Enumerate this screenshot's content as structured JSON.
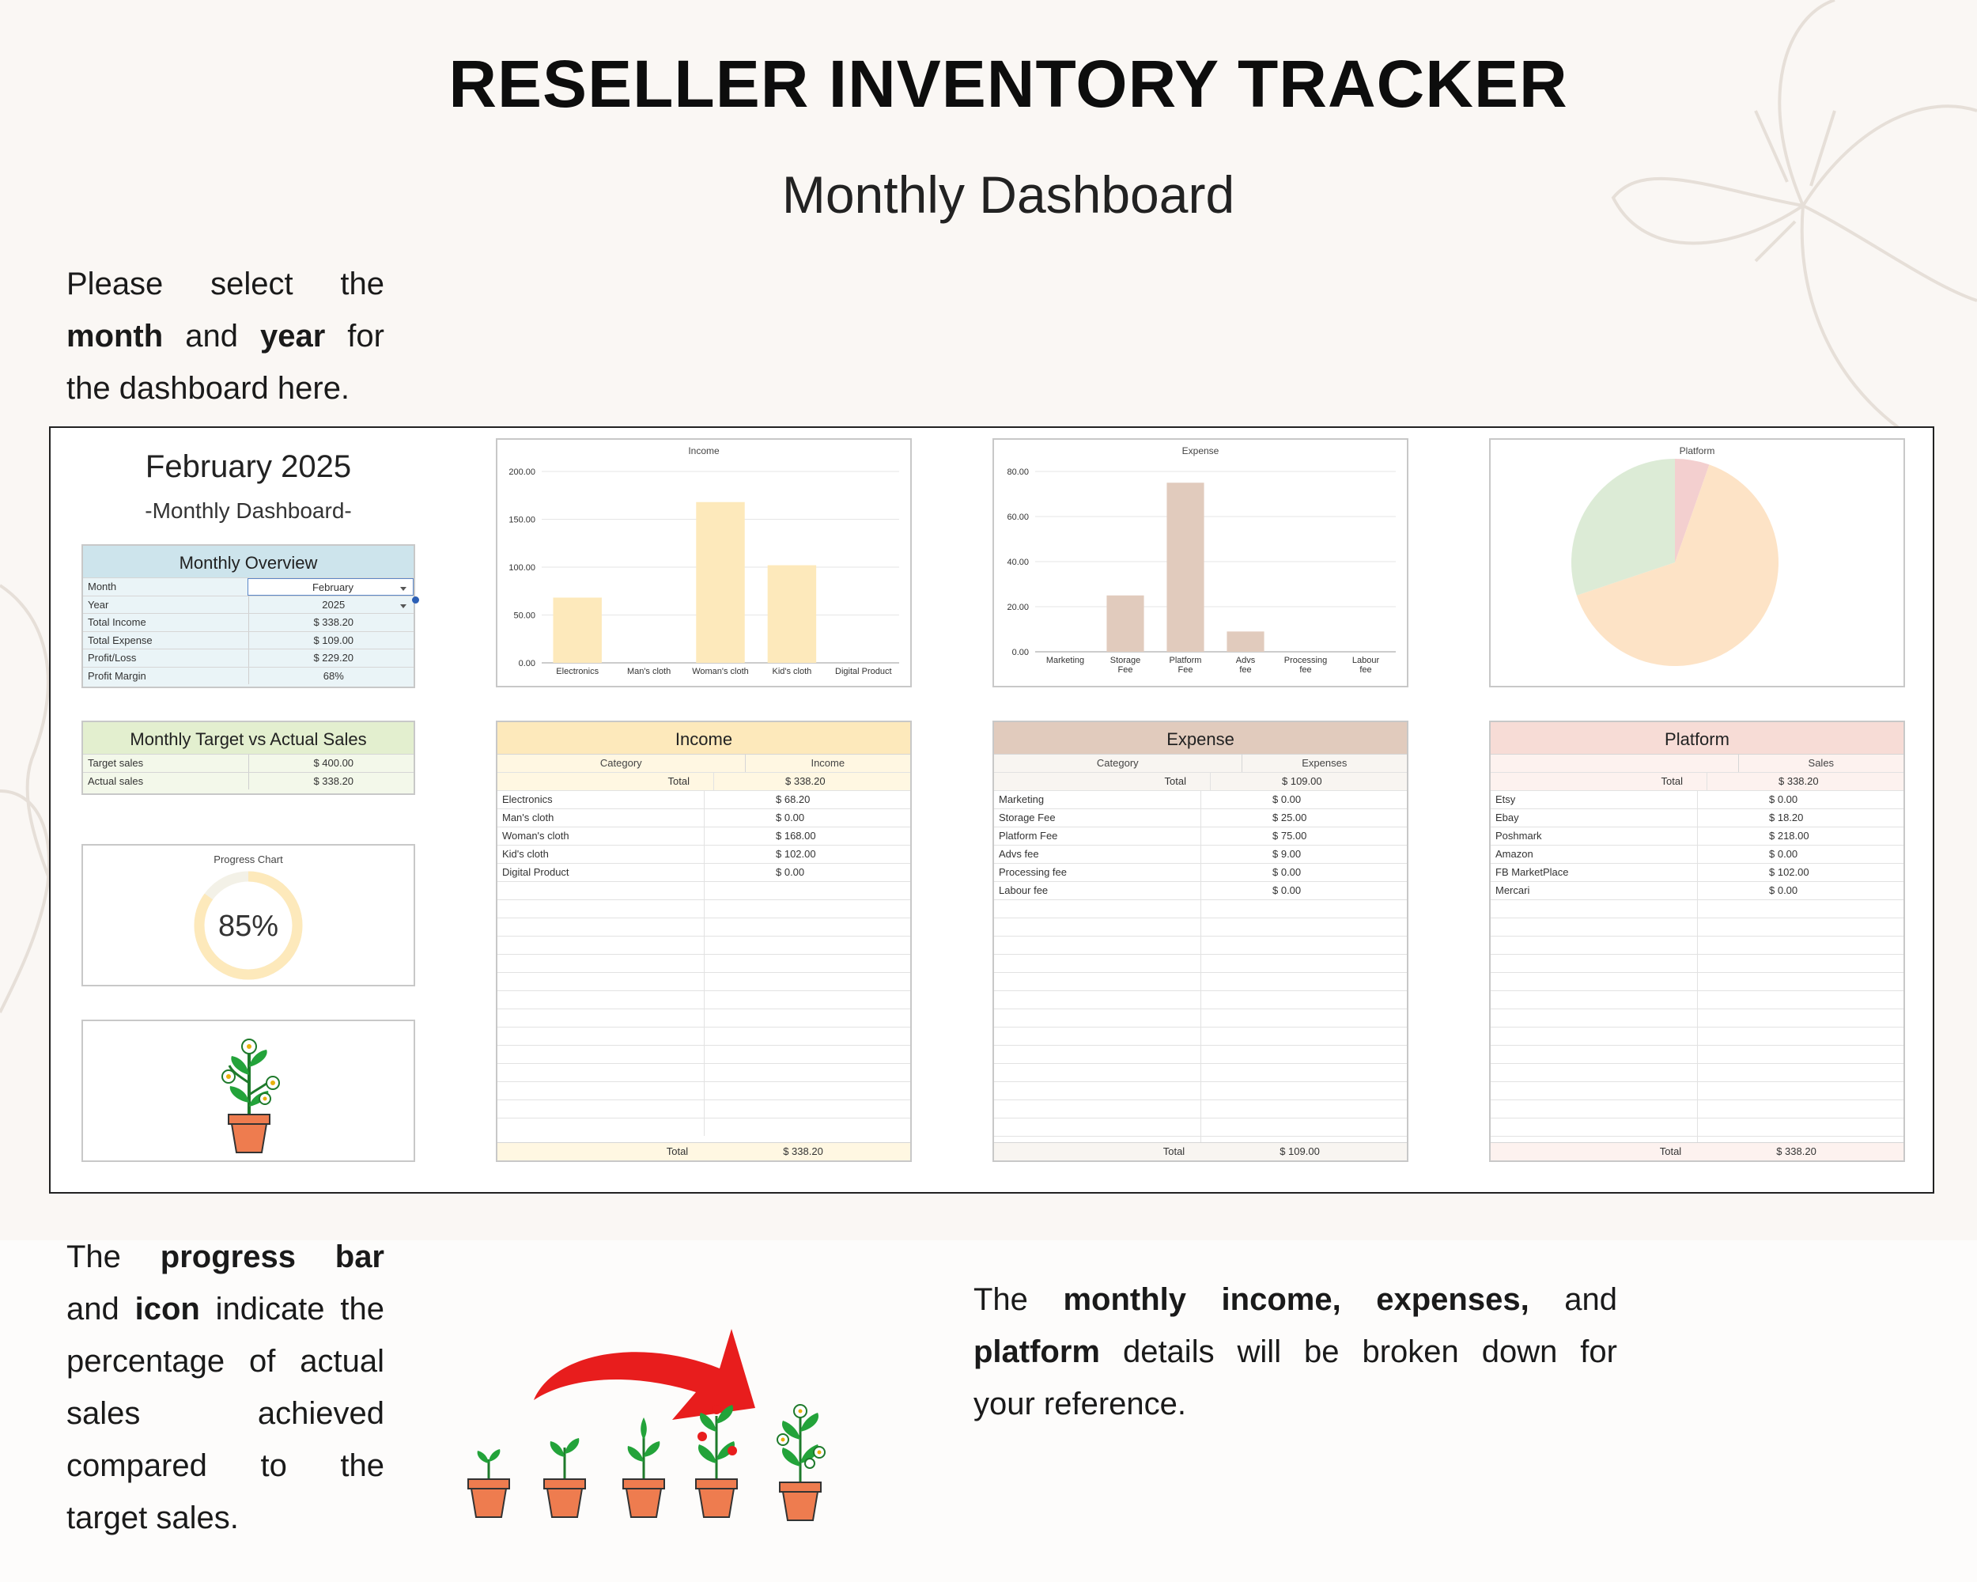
{
  "page": {
    "title": "RESELLER INVENTORY TRACKER",
    "subtitle": "Monthly Dashboard"
  },
  "intro": {
    "line1": "Please select the",
    "month_word": "month",
    "and_word": "and",
    "year_word": "year",
    "for_word": "for",
    "line3": "the dashboard here."
  },
  "dashboard": {
    "month_year": "February 2025",
    "subheading": "-Monthly Dashboard-",
    "overview": {
      "title": "Monthly Overview",
      "rows": [
        {
          "label": "Month",
          "value": "February"
        },
        {
          "label": "Year",
          "value": "2025"
        },
        {
          "label": "Total Income",
          "value": "$ 338.20"
        },
        {
          "label": "Total Expense",
          "value": "$ 109.00"
        },
        {
          "label": "Profit/Loss",
          "value": "$ 229.20"
        },
        {
          "label": "Profit Margin",
          "value": "68%"
        }
      ]
    },
    "target": {
      "title": "Monthly Target vs Actual Sales",
      "rows": [
        {
          "label": "Target sales",
          "value": "$ 400.00"
        },
        {
          "label": "Actual sales",
          "value": "$ 338.20"
        }
      ]
    },
    "progress": {
      "title": "Progress Chart",
      "label": "85%",
      "fraction": 0.85,
      "color": "#fde9bb"
    },
    "income_table": {
      "title": "Income",
      "col1": "Category",
      "col2": "Income",
      "total_label": "Total",
      "total_value": "$ 338.20",
      "rows": [
        {
          "label": "Electronics",
          "value": "$ 68.20"
        },
        {
          "label": "Man's cloth",
          "value": "$ 0.00"
        },
        {
          "label": "Woman's cloth",
          "value": "$ 168.00"
        },
        {
          "label": "Kid's cloth",
          "value": "$ 102.00"
        },
        {
          "label": "Digital Product",
          "value": "$ 0.00"
        }
      ],
      "footer_label": "Total",
      "footer_value": "$ 338.20",
      "header_color": "#fde9bb"
    },
    "expense_table": {
      "title": "Expense",
      "col1": "Category",
      "col2": "Expenses",
      "total_label": "Total",
      "total_value": "$ 109.00",
      "rows": [
        {
          "label": "Marketing",
          "value": "$ 0.00"
        },
        {
          "label": "Storage Fee",
          "value": "$ 25.00"
        },
        {
          "label": "Platform Fee",
          "value": "$ 75.00"
        },
        {
          "label": "Advs fee",
          "value": "$ 9.00"
        },
        {
          "label": "Processing fee",
          "value": "$ 0.00"
        },
        {
          "label": "Labour fee",
          "value": "$ 0.00"
        }
      ],
      "footer_label": "Total",
      "footer_value": "$ 109.00",
      "header_color": "#e1cbbd"
    },
    "platform_table": {
      "title": "Platform",
      "col1": "",
      "col2": "Sales",
      "total_label": "Total",
      "total_value": "$ 338.20",
      "rows": [
        {
          "label": "Etsy",
          "value": "$ 0.00"
        },
        {
          "label": "Ebay",
          "value": "$ 18.20"
        },
        {
          "label": "Poshmark",
          "value": "$ 218.00"
        },
        {
          "label": "Amazon",
          "value": "$ 0.00"
        },
        {
          "label": "FB MarketPlace",
          "value": "$ 102.00"
        },
        {
          "label": "Mercari",
          "value": "$ 0.00"
        }
      ],
      "footer_label": "Total",
      "footer_value": "$ 338.20",
      "header_color": "#f7dcd6"
    }
  },
  "chart_data": [
    {
      "type": "bar",
      "title": "Income",
      "categories": [
        "Electronics",
        "Man's cloth",
        "Woman's cloth",
        "Kid's cloth",
        "Digital Product"
      ],
      "values": [
        68.2,
        0,
        168,
        102,
        0
      ],
      "ylim": [
        0,
        200
      ],
      "yticks": [
        "0.00",
        "50.00",
        "100.00",
        "150.00",
        "200.00"
      ],
      "color": "#fde9bb",
      "grid": true
    },
    {
      "type": "bar",
      "title": "Expense",
      "categories": [
        "Marketing",
        "Storage Fee",
        "Platform Fee",
        "Advs fee",
        "Processing fee",
        "Labour fee"
      ],
      "values": [
        0,
        25,
        75,
        9,
        0,
        0
      ],
      "ylim": [
        0,
        80
      ],
      "yticks": [
        "0.00",
        "20.00",
        "40.00",
        "60.00",
        "80.00"
      ],
      "color": "#e1cbbd",
      "grid": true
    },
    {
      "type": "pie",
      "title": "Platform",
      "labels": [
        "Etsy",
        "Ebay",
        "Poshmark",
        "Amazon",
        "FB MarketPlace",
        "Mercari"
      ],
      "values": [
        0,
        18.2,
        218,
        0,
        102,
        0
      ],
      "colors": [
        "#f7d9d0",
        "#f3cfcf",
        "#fde3c6",
        "#ffffff",
        "#dcebd6",
        "#ffffff"
      ]
    }
  ],
  "bottom_left": {
    "t1": "The",
    "b1": "progress bar",
    "t2": "and",
    "b2": "icon",
    "t3": "indicate the percentage of actual sales achieved compared to the",
    "t4": "target sales."
  },
  "bottom_right": {
    "t1": "The",
    "b1": "monthly income, expenses,",
    "t2": "and",
    "b2": "platform",
    "t3": "details will be broken down for",
    "t4": "your reference."
  },
  "colors": {
    "overview_header": "#cde4ec",
    "target_header": "#e3efcf",
    "pot": "#ee7c4f",
    "leaf": "#23a33a",
    "arrow": "#e81d1d"
  }
}
